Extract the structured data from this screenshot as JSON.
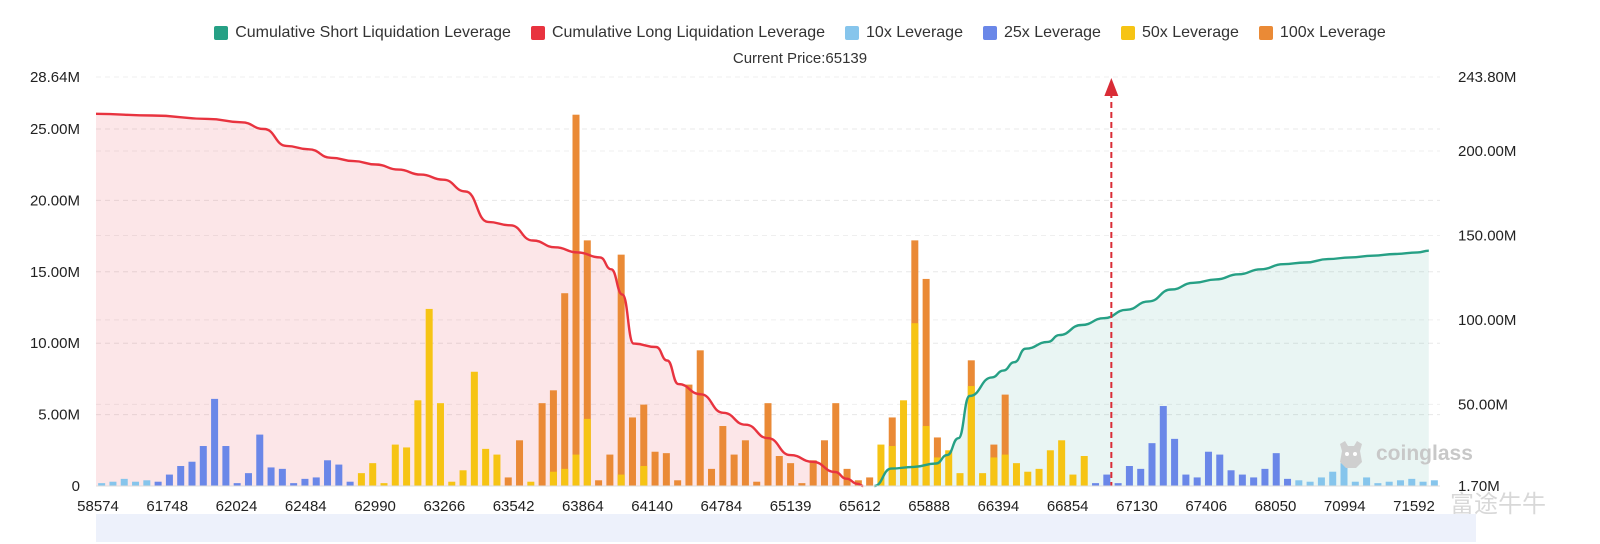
{
  "legend": [
    {
      "label": "Cumulative Short Liquidation Leverage",
      "color": "#26a085"
    },
    {
      "label": "Cumulative Long Liquidation Leverage",
      "color": "#e8333f"
    },
    {
      "label": "10x Leverage",
      "color": "#86c5ec"
    },
    {
      "label": "25x Leverage",
      "color": "#6a87e8"
    },
    {
      "label": "50x Leverage",
      "color": "#f6c414"
    },
    {
      "label": "100x Leverage",
      "color": "#ea8a36"
    }
  ],
  "current_price_label": "Current Price:65139",
  "watermark": "coinglass",
  "watermark2": "富途牛牛",
  "chart_data": {
    "type": "bar",
    "x_tick_labels": [
      "58574",
      "61748",
      "62024",
      "62484",
      "62990",
      "63266",
      "63542",
      "63864",
      "64140",
      "64784",
      "65139",
      "65612",
      "65888",
      "66394",
      "66854",
      "67130",
      "67406",
      "68050",
      "70994",
      "71592"
    ],
    "left_axis_ticks": [
      "0",
      "5.00M",
      "10.00M",
      "15.00M",
      "20.00M",
      "25.00M",
      "28.64M"
    ],
    "right_axis_ticks": [
      "1.70M",
      "50.00M",
      "100.00M",
      "150.00M",
      "200.00M",
      "243.80M"
    ],
    "ylim_left": [
      0,
      28.64
    ],
    "ylim_right": [
      1.7,
      243.8
    ],
    "current_price_index": 90,
    "bars": [
      {
        "v": 0.2,
        "c": "10x"
      },
      {
        "v": 0.3,
        "c": "10x"
      },
      {
        "v": 0.5,
        "c": "10x"
      },
      {
        "v": 0.3,
        "c": "10x"
      },
      {
        "v": 0.4,
        "c": "10x"
      },
      {
        "v": 0.3,
        "c": "25x"
      },
      {
        "v": 0.8,
        "c": "25x"
      },
      {
        "v": 1.4,
        "c": "25x"
      },
      {
        "v": 1.7,
        "c": "25x"
      },
      {
        "v": 2.8,
        "c": "25x"
      },
      {
        "v": 6.1,
        "c": "25x"
      },
      {
        "v": 2.8,
        "c": "25x"
      },
      {
        "v": 0.2,
        "c": "25x"
      },
      {
        "v": 0.9,
        "c": "25x"
      },
      {
        "v": 3.6,
        "c": "25x"
      },
      {
        "v": 1.3,
        "c": "25x"
      },
      {
        "v": 1.2,
        "c": "25x"
      },
      {
        "v": 0.2,
        "c": "25x"
      },
      {
        "v": 0.5,
        "c": "25x"
      },
      {
        "v": 0.6,
        "c": "25x"
      },
      {
        "v": 1.8,
        "c": "25x"
      },
      {
        "v": 1.5,
        "c": "25x"
      },
      {
        "v": 0.3,
        "c": "25x"
      },
      {
        "v": 0.9,
        "c": "50x"
      },
      {
        "v": 1.6,
        "c": "50x"
      },
      {
        "v": 0.2,
        "c": "50x"
      },
      {
        "v": 2.9,
        "c": "50x"
      },
      {
        "v": 2.7,
        "c": "50x"
      },
      {
        "v": 6.0,
        "c": "50x"
      },
      {
        "v": 12.4,
        "c": "50x"
      },
      {
        "v": 5.8,
        "c": "50x"
      },
      {
        "v": 0.3,
        "c": "50x"
      },
      {
        "v": 1.1,
        "c": "50x"
      },
      {
        "v": 8.0,
        "c": "50x"
      },
      {
        "v": 2.6,
        "c": "50x"
      },
      {
        "v": 2.2,
        "c": "50x"
      },
      {
        "v": 0.6,
        "c": "100x"
      },
      {
        "v": 3.2,
        "c": "100x"
      },
      {
        "v": 0.3,
        "c": "50x"
      },
      {
        "v": 5.8,
        "c": "100x"
      },
      {
        "v": 6.7,
        "c": "100x",
        "s": 1.0
      },
      {
        "v": 13.5,
        "c": "100x",
        "s": 1.2
      },
      {
        "v": 26.0,
        "c": "100x",
        "s": 2.2
      },
      {
        "v": 17.2,
        "c": "100x",
        "s": 4.7
      },
      {
        "v": 0.4,
        "c": "100x"
      },
      {
        "v": 2.2,
        "c": "100x"
      },
      {
        "v": 16.2,
        "c": "100x",
        "s": 0.8
      },
      {
        "v": 4.8,
        "c": "100x"
      },
      {
        "v": 5.7,
        "c": "100x",
        "s": 1.4
      },
      {
        "v": 2.4,
        "c": "100x"
      },
      {
        "v": 2.3,
        "c": "100x"
      },
      {
        "v": 0.4,
        "c": "100x"
      },
      {
        "v": 7.1,
        "c": "100x"
      },
      {
        "v": 9.5,
        "c": "100x"
      },
      {
        "v": 1.2,
        "c": "100x"
      },
      {
        "v": 4.2,
        "c": "100x"
      },
      {
        "v": 2.2,
        "c": "100x"
      },
      {
        "v": 3.2,
        "c": "100x"
      },
      {
        "v": 0.3,
        "c": "100x"
      },
      {
        "v": 5.8,
        "c": "100x"
      },
      {
        "v": 2.1,
        "c": "100x"
      },
      {
        "v": 1.6,
        "c": "100x"
      },
      {
        "v": 0.2,
        "c": "100x"
      },
      {
        "v": 1.8,
        "c": "100x"
      },
      {
        "v": 3.2,
        "c": "100x"
      },
      {
        "v": 5.8,
        "c": "100x"
      },
      {
        "v": 1.2,
        "c": "100x"
      },
      {
        "v": 0.4,
        "c": "100x"
      },
      {
        "v": 0.6,
        "c": "100x"
      },
      {
        "v": 2.9,
        "c": "50x"
      },
      {
        "v": 4.8,
        "c": "100x",
        "s": 2.8
      },
      {
        "v": 6.0,
        "c": "50x"
      },
      {
        "v": 17.2,
        "c": "100x",
        "s": 11.4
      },
      {
        "v": 14.5,
        "c": "100x",
        "s": 4.2
      },
      {
        "v": 3.4,
        "c": "100x",
        "s": 2.0
      },
      {
        "v": 2.5,
        "c": "50x"
      },
      {
        "v": 0.9,
        "c": "50x"
      },
      {
        "v": 8.8,
        "c": "100x",
        "s": 7.0
      },
      {
        "v": 0.9,
        "c": "50x"
      },
      {
        "v": 2.9,
        "c": "100x",
        "s": 2.0
      },
      {
        "v": 6.4,
        "c": "100x",
        "s": 2.2
      },
      {
        "v": 1.6,
        "c": "50x"
      },
      {
        "v": 1.0,
        "c": "50x"
      },
      {
        "v": 1.2,
        "c": "50x"
      },
      {
        "v": 2.5,
        "c": "50x"
      },
      {
        "v": 3.2,
        "c": "50x"
      },
      {
        "v": 0.8,
        "c": "50x"
      },
      {
        "v": 2.1,
        "c": "50x"
      },
      {
        "v": 0.2,
        "c": "25x"
      },
      {
        "v": 0.8,
        "c": "25x"
      },
      {
        "v": 0.2,
        "c": "25x"
      },
      {
        "v": 1.4,
        "c": "25x"
      },
      {
        "v": 1.2,
        "c": "25x"
      },
      {
        "v": 3.0,
        "c": "25x"
      },
      {
        "v": 5.6,
        "c": "25x"
      },
      {
        "v": 3.3,
        "c": "25x"
      },
      {
        "v": 0.8,
        "c": "25x"
      },
      {
        "v": 0.6,
        "c": "25x"
      },
      {
        "v": 2.4,
        "c": "25x"
      },
      {
        "v": 2.2,
        "c": "25x"
      },
      {
        "v": 1.1,
        "c": "25x"
      },
      {
        "v": 0.8,
        "c": "25x"
      },
      {
        "v": 0.6,
        "c": "25x"
      },
      {
        "v": 1.2,
        "c": "25x"
      },
      {
        "v": 2.3,
        "c": "25x"
      },
      {
        "v": 0.5,
        "c": "25x"
      },
      {
        "v": 0.4,
        "c": "10x"
      },
      {
        "v": 0.3,
        "c": "10x"
      },
      {
        "v": 0.6,
        "c": "10x"
      },
      {
        "v": 1.0,
        "c": "10x"
      },
      {
        "v": 1.6,
        "c": "10x"
      },
      {
        "v": 0.3,
        "c": "10x"
      },
      {
        "v": 0.6,
        "c": "10x"
      },
      {
        "v": 0.2,
        "c": "10x"
      },
      {
        "v": 0.3,
        "c": "10x"
      },
      {
        "v": 0.4,
        "c": "10x"
      },
      {
        "v": 0.5,
        "c": "10x"
      },
      {
        "v": 0.3,
        "c": "10x"
      },
      {
        "v": 0.4,
        "c": "10x"
      }
    ],
    "long_curve": [
      [
        0,
        222
      ],
      [
        5,
        221
      ],
      [
        10,
        219
      ],
      [
        13,
        217
      ],
      [
        15,
        213
      ],
      [
        17,
        203
      ],
      [
        19,
        201
      ],
      [
        21,
        196
      ],
      [
        23,
        194
      ],
      [
        25,
        192
      ],
      [
        27,
        189
      ],
      [
        29,
        186
      ],
      [
        31,
        183
      ],
      [
        33,
        176
      ],
      [
        35,
        158
      ],
      [
        37,
        156
      ],
      [
        39,
        147
      ],
      [
        41,
        143
      ],
      [
        43,
        140
      ],
      [
        45,
        137
      ],
      [
        46,
        130
      ],
      [
        47,
        115
      ],
      [
        48,
        86
      ],
      [
        50,
        84
      ],
      [
        51,
        76
      ],
      [
        52,
        62
      ],
      [
        54,
        56
      ],
      [
        56,
        45
      ],
      [
        58,
        38
      ],
      [
        60,
        30
      ],
      [
        62,
        20
      ],
      [
        64,
        16
      ],
      [
        66,
        10
      ],
      [
        67,
        6
      ],
      [
        68,
        3
      ],
      [
        68.5,
        1.7
      ]
    ],
    "short_curve": [
      [
        69.5,
        1.7
      ],
      [
        71,
        12
      ],
      [
        73,
        13
      ],
      [
        75,
        15
      ],
      [
        76,
        20
      ],
      [
        77,
        30
      ],
      [
        78,
        55
      ],
      [
        80,
        66
      ],
      [
        81,
        70
      ],
      [
        82,
        75
      ],
      [
        83,
        83
      ],
      [
        85,
        87
      ],
      [
        86,
        91
      ],
      [
        88,
        97
      ],
      [
        90,
        101
      ],
      [
        92,
        106
      ],
      [
        94,
        111
      ],
      [
        96,
        118
      ],
      [
        98,
        122
      ],
      [
        100,
        124
      ],
      [
        102,
        127
      ],
      [
        104,
        130
      ],
      [
        106,
        133
      ],
      [
        108,
        134
      ],
      [
        110,
        136
      ],
      [
        112,
        137
      ],
      [
        114,
        138
      ],
      [
        116,
        139
      ],
      [
        118,
        140
      ],
      [
        119,
        141
      ]
    ],
    "x_range": [
      0,
      120
    ]
  }
}
